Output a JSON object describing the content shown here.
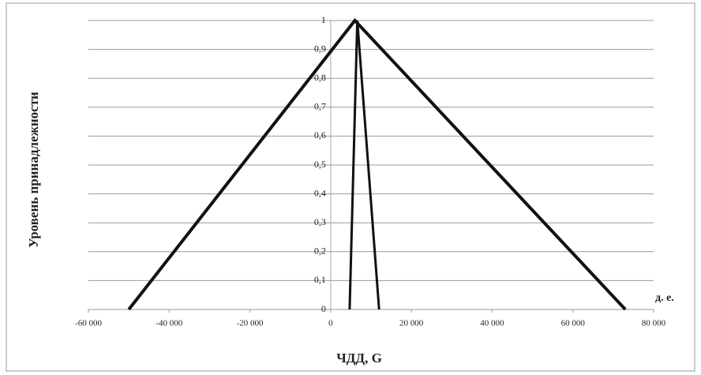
{
  "chart_data": {
    "type": "line",
    "x_label": "ЧДД, G",
    "y_label": "Уровень принадлежности",
    "x_unit": "д. е.",
    "series": [
      {
        "color": "#111111",
        "x": [
          -50000,
          6000,
          73000
        ],
        "values": [
          0,
          1,
          0
        ]
      },
      {
        "color": "#111111",
        "x": [
          4700,
          6600,
          12000
        ],
        "values": [
          0,
          1,
          0
        ]
      }
    ],
    "xlim": [
      -60000,
      80000
    ],
    "xticks": [
      {
        "value": -60000,
        "label": "-60 000"
      },
      {
        "value": -40000,
        "label": "-40 000"
      },
      {
        "value": -20000,
        "label": "-20 000"
      },
      0,
      {
        "value": 20000,
        "label": "20 000"
      },
      {
        "value": 40000,
        "label": "40 000"
      },
      {
        "value": 60000,
        "label": "60 000"
      },
      {
        "value": 80000,
        "label": "80 000"
      }
    ],
    "ylim": [
      0,
      1
    ],
    "yticks": [
      0,
      {
        "value": 0.1,
        "label": "0,1"
      },
      {
        "value": 0.2,
        "label": "0,2"
      },
      {
        "value": 0.3,
        "label": "0,3"
      },
      {
        "value": 0.4,
        "label": "0,4"
      },
      {
        "value": 0.5,
        "label": "0,5"
      },
      {
        "value": 0.6,
        "label": "0,6"
      },
      {
        "value": 0.7,
        "label": "0,7"
      },
      {
        "value": 0.8,
        "label": "0,8"
      },
      {
        "value": 0.9,
        "label": "0,9"
      },
      1
    ],
    "grid": true
  }
}
